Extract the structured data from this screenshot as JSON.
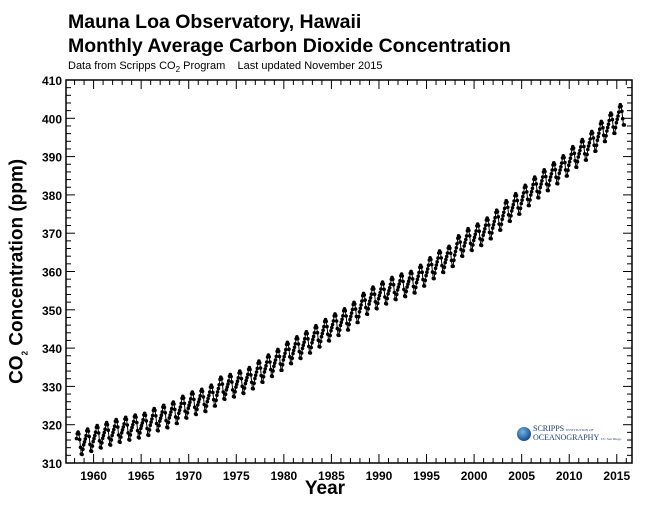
{
  "chart_data": {
    "type": "line",
    "title": "Mauna Loa Observatory, Hawaii",
    "subtitle": "Monthly Average Carbon Dioxide Concentration",
    "source_note": {
      "prefix": "Data from Scripps CO",
      "sub": "2",
      "suffix": " Program",
      "updated": "Last updated November 2015"
    },
    "xlabel": "Year",
    "ylabel": {
      "prefix": "CO",
      "sub": "2",
      "suffix": " Concentration (ppm)"
    },
    "xlim": [
      1957.1,
      2016.6
    ],
    "ylim": [
      310,
      410
    ],
    "x_ticks": [
      "1960",
      "1965",
      "1970",
      "1975",
      "1980",
      "1985",
      "1990",
      "1995",
      "2000",
      "2005",
      "2010",
      "2015"
    ],
    "y_ticks": [
      "310",
      "320",
      "330",
      "340",
      "350",
      "360",
      "370",
      "380",
      "390",
      "400",
      "410"
    ],
    "grid": false,
    "marker": "filled-circle",
    "line_color": "#000000",
    "start": {
      "year": 1958,
      "month": 3
    },
    "end": {
      "year": 2015,
      "month": 10
    },
    "annual_mean_years": [
      1958,
      1959,
      1960,
      1961,
      1962,
      1963,
      1964,
      1965,
      1966,
      1967,
      1968,
      1969,
      1970,
      1971,
      1972,
      1973,
      1974,
      1975,
      1976,
      1977,
      1978,
      1979,
      1980,
      1981,
      1982,
      1983,
      1984,
      1985,
      1986,
      1987,
      1988,
      1989,
      1990,
      1991,
      1992,
      1993,
      1994,
      1995,
      1996,
      1997,
      1998,
      1999,
      2000,
      2001,
      2002,
      2003,
      2004,
      2005,
      2006,
      2007,
      2008,
      2009,
      2010,
      2011,
      2012,
      2013,
      2014,
      2015
    ],
    "annual_mean_ppm": [
      315.2,
      315.97,
      316.91,
      317.64,
      318.45,
      318.99,
      319.62,
      320.04,
      321.38,
      322.16,
      323.04,
      324.62,
      325.68,
      326.32,
      327.45,
      329.68,
      330.18,
      331.11,
      332.04,
      333.83,
      335.4,
      336.84,
      338.75,
      340.11,
      341.45,
      343.05,
      344.65,
      346.12,
      347.42,
      349.19,
      351.57,
      353.12,
      354.39,
      355.61,
      356.45,
      357.1,
      358.83,
      360.82,
      362.61,
      363.73,
      366.7,
      368.38,
      369.55,
      371.14,
      373.28,
      375.8,
      377.52,
      379.8,
      381.9,
      383.79,
      385.6,
      387.43,
      389.9,
      391.65,
      393.85,
      396.52,
      398.65,
      400.83
    ],
    "seasonal_offset_ppm_jan_to_dec": [
      -0.1,
      0.6,
      1.4,
      2.6,
      3.0,
      2.4,
      0.9,
      -1.2,
      -3.0,
      -3.2,
      -1.9,
      -0.8
    ]
  },
  "logo": {
    "line1": "SCRIPPS",
    "line1_small": "INSTITUTION OF",
    "line2": "OCEANOGRAPHY",
    "line2_small": "UC San Diego"
  }
}
